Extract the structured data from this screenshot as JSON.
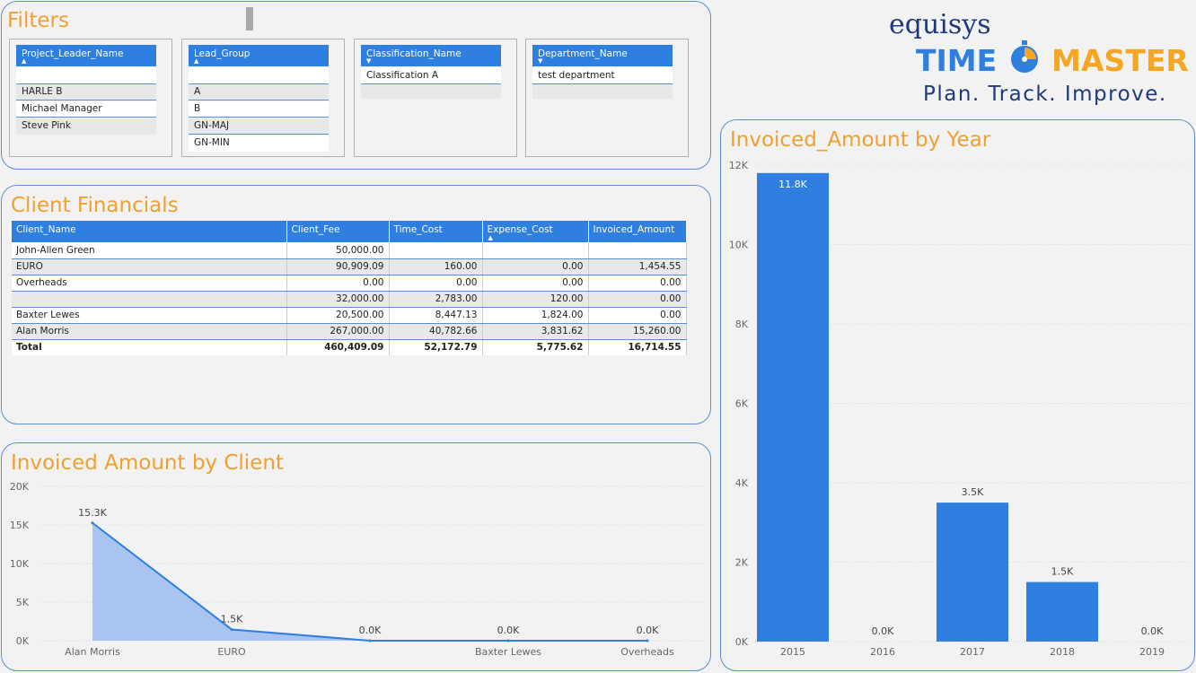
{
  "filters": {
    "title": "Filters",
    "slicers": [
      {
        "header": "Project_Leader_Name",
        "items": [
          "",
          "HARLE B",
          "Michael Manager",
          "Steve Pink"
        ]
      },
      {
        "header": "Lead_Group",
        "items": [
          "",
          "A",
          "B",
          "GN-MAJ",
          "GN-MIN"
        ]
      },
      {
        "header": "Classification_Name",
        "items": [
          "Classification A"
        ]
      },
      {
        "header": "Department_Name",
        "items": [
          "test department"
        ]
      }
    ]
  },
  "logo": {
    "company": "equisys",
    "product_part1": "TIME",
    "product_part2": "MASTER",
    "tagline": "Plan. Track. Improve.",
    "colors": {
      "time": "#2f7fe0",
      "master": "#f5a623",
      "navy": "#1f3a7a"
    }
  },
  "client_financials": {
    "title": "Client Financials",
    "columns": [
      "Client_Name",
      "Client_Fee",
      "Time_Cost",
      "Expense_Cost",
      "Invoiced_Amount"
    ],
    "rows": [
      [
        "John-Allen Green",
        "50,000.00",
        "",
        "",
        ""
      ],
      [
        "EURO",
        "90,909.09",
        "160.00",
        "0.00",
        "1,454.55"
      ],
      [
        "Overheads",
        "0.00",
        "0.00",
        "0.00",
        "0.00"
      ],
      [
        "",
        "32,000.00",
        "2,783.00",
        "120.00",
        "0.00"
      ],
      [
        "Baxter Lewes",
        "20,500.00",
        "8,447.13",
        "1,824.00",
        "0.00"
      ],
      [
        "Alan Morris",
        "267,000.00",
        "40,782.66",
        "3,831.62",
        "15,260.00"
      ]
    ],
    "total": [
      "Total",
      "460,409.09",
      "52,172.79",
      "5,775.62",
      "16,714.55"
    ]
  },
  "chart_data": [
    {
      "type": "area",
      "title": "Invoiced Amount by Client",
      "categories": [
        "Alan Morris",
        "EURO",
        "",
        "Baxter Lewes",
        "Overheads"
      ],
      "values": [
        15260,
        1454.55,
        0,
        0,
        0
      ],
      "data_labels": [
        "15.3K",
        "1.5K",
        "0.0K",
        "0.0K",
        "0.0K"
      ],
      "ylim": [
        0,
        20000
      ],
      "yticks": [
        "0K",
        "5K",
        "10K",
        "15K",
        "20K"
      ],
      "grid": true,
      "color": "#2f7fe0",
      "fill": "#a9c4f0"
    },
    {
      "type": "bar",
      "title": "Invoiced_Amount by Year",
      "categories": [
        "2015",
        "2016",
        "2017",
        "2018",
        "2019"
      ],
      "values": [
        11800,
        0,
        3500,
        1500,
        0
      ],
      "data_labels": [
        "11.8K",
        "0.0K",
        "3.5K",
        "1.5K",
        "0.0K"
      ],
      "ylim": [
        0,
        12000
      ],
      "yticks": [
        "0K",
        "2K",
        "4K",
        "6K",
        "8K",
        "10K",
        "12K"
      ],
      "grid": true,
      "color": "#2f7fe0"
    }
  ]
}
